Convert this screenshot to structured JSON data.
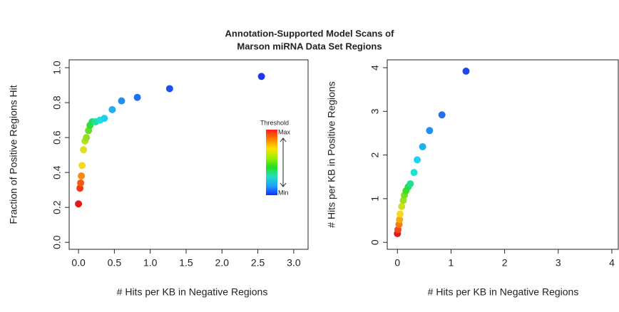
{
  "title": [
    "Annotation-Supported Model Scans of",
    "Marson miRNA Data Set Regions"
  ],
  "chart_data": [
    {
      "type": "scatter",
      "x_label": "# Hits per KB in Negative Regions",
      "y_label": "Fraction of Positive Regions Hit",
      "xlim": [
        -0.13,
        3.2
      ],
      "ylim": [
        -0.04,
        1.045
      ],
      "xticks": [
        {
          "value": 0,
          "label": "0.0"
        },
        0.5,
        {
          "value": 1,
          "label": "1.0"
        },
        1.5,
        {
          "value": 2,
          "label": "2.0"
        },
        2.5,
        {
          "value": 3,
          "label": "3.0"
        }
      ],
      "yticks": [
        {
          "value": 0,
          "label": "0.0"
        },
        0.2,
        0.4,
        0.6,
        0.8,
        {
          "value": 1,
          "label": "1.0"
        }
      ],
      "x": [
        0.0,
        0.02,
        0.03,
        0.04,
        0.05,
        0.07,
        0.09,
        0.11,
        0.14,
        0.16,
        0.19,
        0.24,
        0.3,
        0.36,
        0.47,
        0.6,
        0.82,
        1.27,
        2.55
      ],
      "y": [
        0.22,
        0.31,
        0.34,
        0.38,
        0.44,
        0.53,
        0.58,
        0.6,
        0.64,
        0.67,
        0.69,
        0.69,
        0.7,
        0.71,
        0.76,
        0.81,
        0.83,
        0.88,
        0.95
      ],
      "point_colors": [
        "#e31a1c",
        "#f03a1a",
        "#f55a10",
        "#f88a10",
        "#f5d820",
        "#e0e020",
        "#b8e020",
        "#90e020",
        "#60e020",
        "#30e030",
        "#20e060",
        "#20e0a0",
        "#20e0d0",
        "#20d0f0",
        "#20b0f0",
        "#2090f0",
        "#2070f0",
        "#2050f0",
        "#1a3af0"
      ],
      "legend": {
        "title": "Threshold",
        "max_label": "Max",
        "min_label": "Min",
        "colors": [
          "#ff1a1a",
          "#ff8000",
          "#ffe000",
          "#a0f000",
          "#20e020",
          "#20e0c0",
          "#20a0ff",
          "#1030ff"
        ]
      }
    },
    {
      "type": "scatter",
      "x_label": "# Hits per KB in Negative Regions",
      "y_label": "# Hits per KB in Positive Regions",
      "xlim": [
        -0.19,
        4.12
      ],
      "ylim": [
        -0.16,
        4.18
      ],
      "xticks": [
        0,
        1,
        2,
        3,
        4
      ],
      "yticks": [
        0,
        1,
        2,
        3,
        4
      ],
      "x": [
        0.0,
        0.01,
        0.03,
        0.04,
        0.05,
        0.08,
        0.11,
        0.13,
        0.16,
        0.2,
        0.24,
        0.31,
        0.37,
        0.47,
        0.6,
        0.83,
        1.28
      ],
      "y": [
        0.2,
        0.29,
        0.41,
        0.52,
        0.65,
        0.82,
        0.96,
        1.08,
        1.18,
        1.27,
        1.34,
        1.6,
        1.89,
        2.19,
        2.56,
        2.92,
        3.92
      ],
      "point_colors": [
        "#e31a1c",
        "#f04a1a",
        "#f57a10",
        "#f8a810",
        "#f5d820",
        "#d0e020",
        "#a0e020",
        "#70e020",
        "#40e020",
        "#20e050",
        "#20e090",
        "#20e0d0",
        "#20d0f0",
        "#20b0f0",
        "#2090f0",
        "#2070f0",
        "#1a4af0"
      ]
    }
  ]
}
